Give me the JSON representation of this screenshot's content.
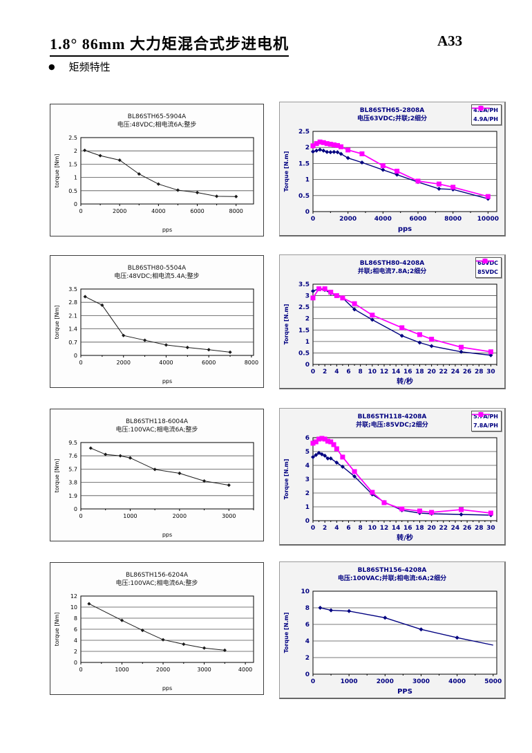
{
  "page": {
    "title": "1.8°  86mm 大力矩混合式步进电机",
    "page_number": "A33",
    "section_bullet": "矩频特性"
  },
  "colors": {
    "navy": "#000080",
    "magenta": "#FF00FF",
    "black": "#1a1a1a",
    "grid": "#4d4d4d"
  },
  "chart_data": [
    {
      "type": "line",
      "title": "BL86STH65-5904A",
      "subtitle": "电压:48VDC;相电流6A;整步",
      "style": "plain",
      "xlabel": "pps",
      "ylabel": "torque  [Nm]",
      "xlim": [
        0,
        8900
      ],
      "xticks": [
        0,
        2000,
        4000,
        6000,
        8000
      ],
      "xminor": 1000,
      "ylim": [
        0,
        2.5
      ],
      "yticks": [
        0,
        0.5,
        1,
        1.5,
        2,
        2.5
      ],
      "legend": false,
      "series": [
        {
          "name": "BL86STH65-5904A",
          "color": "#1a1a1a",
          "marker": "diamond",
          "x": [
            200,
            1000,
            2000,
            3000,
            4000,
            5000,
            6000,
            7000,
            8000
          ],
          "y": [
            2.02,
            1.82,
            1.65,
            1.13,
            0.75,
            0.52,
            0.43,
            0.29,
            0.28
          ]
        }
      ]
    },
    {
      "type": "line",
      "title": "BL86STH65-2808A",
      "subtitle": "电压63VDC;并联;2细分",
      "style": "navy",
      "xlabel": "pps",
      "ylabel": "Torque [N.m]",
      "xlim": [
        0,
        10500
      ],
      "xticks": [
        0,
        2000,
        4000,
        6000,
        8000,
        10000
      ],
      "xminor": 1000,
      "ylim": [
        0,
        2.5
      ],
      "yticks": [
        0,
        0.5,
        1,
        1.5,
        2,
        2.5
      ],
      "legend": true,
      "series": [
        {
          "name": "4.2A/PH",
          "color": "#000080",
          "marker": "diamond",
          "x": [
            0,
            200,
            400,
            600,
            800,
            1000,
            1200,
            1400,
            1600,
            2000,
            2800,
            4000,
            4800,
            6000,
            7200,
            8000,
            10000
          ],
          "y": [
            1.87,
            1.9,
            1.93,
            1.9,
            1.86,
            1.85,
            1.86,
            1.85,
            1.8,
            1.67,
            1.53,
            1.3,
            1.15,
            0.92,
            0.71,
            0.69,
            0.4
          ]
        },
        {
          "name": "4.9A/PH",
          "color": "#FF00FF",
          "marker": "square",
          "x": [
            0,
            200,
            400,
            600,
            800,
            1000,
            1200,
            1400,
            1600,
            2000,
            2800,
            4000,
            4800,
            6000,
            7200,
            8000,
            10000
          ],
          "y": [
            2.05,
            2.12,
            2.17,
            2.15,
            2.12,
            2.1,
            2.08,
            2.06,
            2.02,
            1.92,
            1.8,
            1.43,
            1.26,
            0.95,
            0.86,
            0.76,
            0.47
          ]
        }
      ]
    },
    {
      "type": "line",
      "title": "BL86STH80-5504A",
      "subtitle": "电压:48VDC;相电流5.4A;整步",
      "style": "plain",
      "xlabel": "pps",
      "ylabel": "torque  [Nm]",
      "xlim": [
        0,
        8100
      ],
      "xticks": [
        0,
        2000,
        4000,
        6000,
        8000
      ],
      "xminor": 1000,
      "ylim": [
        0,
        3.5
      ],
      "yticks": [
        0,
        0.7,
        1.4,
        2.1,
        2.8,
        3.5
      ],
      "legend": false,
      "series": [
        {
          "name": "BL86STH80-5504A",
          "color": "#1a1a1a",
          "marker": "diamond",
          "x": [
            200,
            1000,
            2000,
            3000,
            4000,
            5000,
            6000,
            7000
          ],
          "y": [
            3.1,
            2.65,
            1.05,
            0.8,
            0.55,
            0.42,
            0.3,
            0.17
          ]
        }
      ]
    },
    {
      "type": "line",
      "title": "BL86STH80-4208A",
      "subtitle": "并联;相电流7.8A;2细分",
      "style": "navy",
      "xlabel": "转/秒",
      "ylabel": "Torque [N.m]",
      "xlim": [
        0,
        31
      ],
      "xticks": [
        0,
        2,
        4,
        6,
        8,
        10,
        12,
        14,
        16,
        18,
        20,
        22,
        24,
        26,
        28,
        30
      ],
      "xminor": 1,
      "ylim": [
        0,
        3.5
      ],
      "yticks": [
        0,
        0.5,
        1,
        1.5,
        2,
        2.5,
        3,
        3.5
      ],
      "legend": true,
      "series": [
        {
          "name": "68VDC",
          "color": "#000080",
          "marker": "diamond",
          "x": [
            0,
            1,
            2,
            3,
            4,
            5,
            7,
            10,
            15,
            18,
            20,
            25,
            30
          ],
          "y": [
            3.2,
            3.3,
            3.25,
            3.1,
            3.0,
            2.9,
            2.4,
            1.95,
            1.25,
            0.95,
            0.8,
            0.55,
            0.4
          ]
        },
        {
          "name": "85VDC",
          "color": "#FF00FF",
          "marker": "square",
          "x": [
            0,
            1,
            2,
            3,
            4,
            5,
            7,
            10,
            15,
            18,
            20,
            25,
            30
          ],
          "y": [
            2.9,
            3.3,
            3.3,
            3.15,
            3.0,
            2.9,
            2.65,
            2.15,
            1.6,
            1.3,
            1.1,
            0.75,
            0.55
          ]
        }
      ]
    },
    {
      "type": "line",
      "title": "BL86STH118-6004A",
      "subtitle": "电压:100VAC;相电流6A;整步",
      "style": "plain",
      "xlabel": "pps",
      "ylabel": "torque  [Nm]",
      "xlim": [
        0,
        3500
      ],
      "xticks": [
        0,
        1000,
        2000,
        3000
      ],
      "xminor": 500,
      "ylim": [
        0,
        9.5
      ],
      "yticks": [
        0,
        1.9,
        3.8,
        5.7,
        7.6,
        9.5
      ],
      "legend": false,
      "series": [
        {
          "name": "BL86STH118-6004A",
          "color": "#1a1a1a",
          "marker": "diamond",
          "x": [
            200,
            500,
            800,
            1000,
            1500,
            2000,
            2500,
            3000
          ],
          "y": [
            8.7,
            7.8,
            7.6,
            7.3,
            5.65,
            5.1,
            4.0,
            3.4
          ]
        }
      ]
    },
    {
      "type": "line",
      "title": "BL86STH118-4208A",
      "subtitle": "并联;电压:85VDC;2细分",
      "style": "navy",
      "xlabel": "转/秒",
      "ylabel": "Torque [N.m]",
      "xlim": [
        0,
        31
      ],
      "xticks": [
        0,
        2,
        4,
        6,
        8,
        10,
        12,
        14,
        16,
        18,
        20,
        22,
        24,
        26,
        28,
        30
      ],
      "xminor": 1,
      "ylim": [
        0,
        6
      ],
      "yticks": [
        0,
        1,
        2,
        3,
        4,
        5,
        6
      ],
      "legend": true,
      "series": [
        {
          "name": "5.7A/PH",
          "color": "#000080",
          "marker": "diamond",
          "x": [
            0,
            0.5,
            1,
            1.5,
            2,
            2.5,
            3,
            4,
            5,
            7,
            10,
            12,
            15,
            18,
            20,
            25,
            30
          ],
          "y": [
            4.6,
            4.75,
            4.9,
            4.8,
            4.7,
            4.5,
            4.5,
            4.2,
            3.9,
            3.2,
            1.9,
            1.35,
            0.75,
            0.55,
            0.5,
            0.45,
            0.4
          ]
        },
        {
          "name": "7.8A/PH",
          "color": "#FF00FF",
          "marker": "square",
          "x": [
            0,
            0.5,
            1,
            1.5,
            2,
            2.5,
            3,
            3.5,
            4,
            5,
            7,
            10,
            12,
            15,
            18,
            20,
            25,
            30
          ],
          "y": [
            5.6,
            5.7,
            5.9,
            5.95,
            5.9,
            5.75,
            5.7,
            5.5,
            5.2,
            4.6,
            3.55,
            2.05,
            1.3,
            0.85,
            0.7,
            0.6,
            0.8,
            0.55
          ]
        }
      ]
    },
    {
      "type": "line",
      "title": "BL86STH156-6204A",
      "subtitle": "电压:100VAC;相电流6A;整步",
      "style": "plain",
      "xlabel": "pps",
      "ylabel": "torque  [Nm]",
      "xlim": [
        0,
        4200
      ],
      "xticks": [
        0,
        1000,
        2000,
        3000,
        4000
      ],
      "xminor": 500,
      "ylim": [
        0,
        12
      ],
      "yticks": [
        0,
        2,
        4,
        6,
        8,
        10,
        12
      ],
      "legend": false,
      "series": [
        {
          "name": "BL86STH156-6204A",
          "color": "#1a1a1a",
          "marker": "diamond",
          "x": [
            200,
            1000,
            1500,
            2000,
            2500,
            3000,
            3500
          ],
          "y": [
            10.6,
            7.6,
            5.8,
            4.1,
            3.3,
            2.6,
            2.2
          ]
        }
      ]
    },
    {
      "type": "line",
      "title": "BL86STH156-4208A",
      "subtitle": "电压:100VAC;并联;相电流:6A;2细分",
      "style": "navy",
      "xlabel": "PPS",
      "ylabel": "Torque [N.m]",
      "xlim": [
        0,
        5100
      ],
      "xticks": [
        0,
        1000,
        2000,
        3000,
        4000,
        5000
      ],
      "xminor": 500,
      "ylim": [
        0,
        10
      ],
      "yticks": [
        0,
        2,
        4,
        6,
        8,
        10
      ],
      "legend": false,
      "series": [
        {
          "name": "BL86STH156-4208A",
          "color": "#000080",
          "marker": "diamond",
          "marker_last": false,
          "x": [
            200,
            500,
            1000,
            2000,
            3000,
            4000,
            5000
          ],
          "y": [
            8.0,
            7.7,
            7.6,
            6.8,
            5.4,
            4.4,
            3.5
          ]
        }
      ]
    }
  ]
}
